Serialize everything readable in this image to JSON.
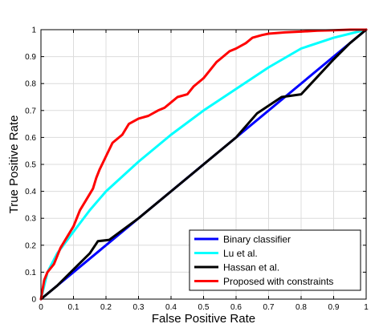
{
  "chart_data": {
    "type": "line",
    "title": "",
    "xlabel": "False Positive Rate",
    "ylabel": "True Positive Rate",
    "xlim": [
      0,
      1
    ],
    "ylim": [
      0,
      1
    ],
    "x_ticks": [
      "0",
      "0.1",
      "0.2",
      "0.3",
      "0.4",
      "0.5",
      "0.6",
      "0.7",
      "0.8",
      "0.9",
      "1"
    ],
    "y_ticks": [
      "0",
      "0.1",
      "0.2",
      "0.3",
      "0.4",
      "0.5",
      "0.6",
      "0.7",
      "0.8",
      "0.9",
      "1"
    ],
    "grid": true,
    "legend_position": "bottom-right",
    "series": [
      {
        "name": "Binary classifier",
        "color": "#0000ff",
        "x": [
          0,
          1
        ],
        "y": [
          0,
          1
        ]
      },
      {
        "name": "Lu et al.",
        "color": "#00ffff",
        "x": [
          0,
          0.02,
          0.05,
          0.1,
          0.15,
          0.2,
          0.3,
          0.4,
          0.5,
          0.6,
          0.7,
          0.8,
          0.9,
          1.0
        ],
        "y": [
          0,
          0.1,
          0.17,
          0.25,
          0.33,
          0.4,
          0.51,
          0.61,
          0.7,
          0.78,
          0.86,
          0.93,
          0.97,
          1.0
        ]
      },
      {
        "name": "Hassan et al.",
        "color": "#000000",
        "x": [
          0,
          0.05,
          0.1,
          0.15,
          0.175,
          0.21,
          0.3,
          0.4,
          0.5,
          0.6,
          0.665,
          0.74,
          0.8,
          0.9,
          0.95,
          1.0
        ],
        "y": [
          0,
          0.05,
          0.11,
          0.17,
          0.215,
          0.22,
          0.3,
          0.4,
          0.5,
          0.6,
          0.69,
          0.75,
          0.76,
          0.89,
          0.95,
          1.0
        ]
      },
      {
        "name": "Proposed with constraints",
        "color": "#ff0000",
        "x": [
          0,
          0.01,
          0.02,
          0.04,
          0.06,
          0.08,
          0.1,
          0.12,
          0.14,
          0.16,
          0.17,
          0.18,
          0.2,
          0.22,
          0.24,
          0.25,
          0.27,
          0.3,
          0.33,
          0.36,
          0.38,
          0.4,
          0.42,
          0.45,
          0.47,
          0.5,
          0.52,
          0.54,
          0.55,
          0.58,
          0.6,
          0.63,
          0.65,
          0.68,
          0.7,
          0.75,
          0.8,
          0.85,
          0.9,
          0.95,
          1.0
        ],
        "y": [
          0,
          0.07,
          0.1,
          0.13,
          0.19,
          0.23,
          0.27,
          0.33,
          0.37,
          0.41,
          0.45,
          0.48,
          0.53,
          0.58,
          0.6,
          0.61,
          0.65,
          0.67,
          0.68,
          0.7,
          0.71,
          0.73,
          0.75,
          0.76,
          0.79,
          0.82,
          0.85,
          0.88,
          0.89,
          0.92,
          0.93,
          0.95,
          0.97,
          0.98,
          0.985,
          0.99,
          0.993,
          0.996,
          0.998,
          1.0,
          1.0
        ]
      }
    ]
  }
}
